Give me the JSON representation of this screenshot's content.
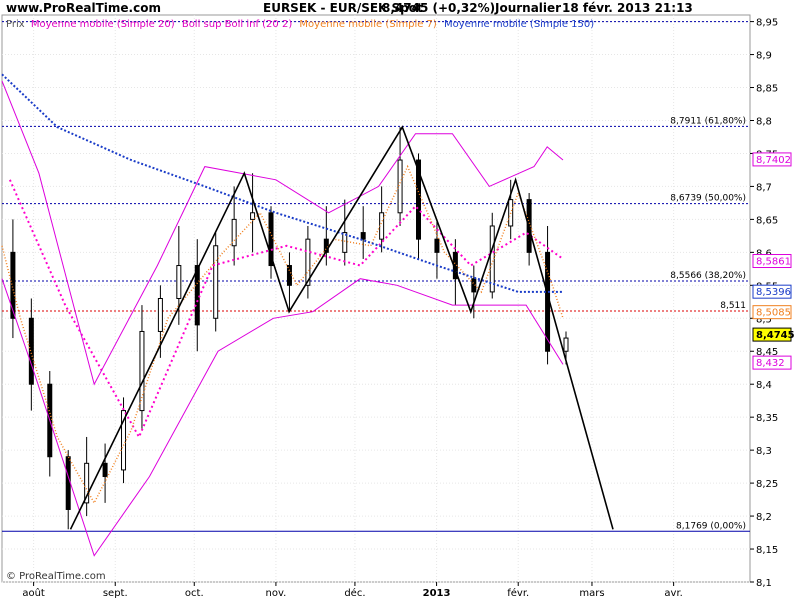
{
  "header": {
    "site": "www.ProRealTime.com",
    "instrument": "EURSEK - EUR/SEK Spot",
    "quote": "8,4745 (+0,32%)",
    "period": "Journalier",
    "datetime": "18 févr. 2013 21:13"
  },
  "copyright": "© ProRealTime.com",
  "legend": {
    "prefix": "Prix",
    "items": [
      {
        "label": "Moyenne mobile (Simple 20)",
        "color": "#e000c0"
      },
      {
        "label": "Boll sup Boll inf (20 2)",
        "color": "#e000c0"
      },
      {
        "label": "Moyenne mobile (Simple 7)",
        "color": "#f08020"
      },
      {
        "label": "Moyenne mobile (Simple 150)",
        "color": "#1a3cc8"
      }
    ]
  },
  "colors": {
    "background": "#ffffff",
    "candles": "#000000",
    "ma20": "#ff00cc",
    "bollinger": "#dd00dd",
    "ma7": "#f08020",
    "ma150": "#1a3cc8",
    "fib_line": "#0000aa",
    "red_level": "#dd0000",
    "trendline": "#000000"
  },
  "chart_data": {
    "type": "candlestick",
    "ylim": [
      8.1,
      8.96
    ],
    "y_ticks": [
      "8,1",
      "8,15",
      "8,2",
      "8,25",
      "8,3",
      "8,35",
      "8,4",
      "8,45",
      "8,5",
      "8,55",
      "8,6",
      "8,65",
      "8,7",
      "8,75",
      "8,8",
      "8,85",
      "8,9",
      "8,95"
    ],
    "x_axis_labels": [
      "août",
      "sept.",
      "oct.",
      "nov.",
      "déc.",
      "2013",
      "févr.",
      "mars",
      "avr."
    ],
    "x_axis_dates": [
      "2012-08-01",
      "2012-09-01",
      "2012-10-01",
      "2012-11-01",
      "2012-12-01",
      "2013-01-01",
      "2013-02-01",
      "2013-03-01",
      "2013-04-01"
    ],
    "date_range": [
      "2012-07-20",
      "2013-04-30"
    ],
    "last_bar_date": "2013-02-18",
    "ohlc_by_week": [
      {
        "week_of": "2012-07-23",
        "o": 8.6,
        "h": 8.65,
        "l": 8.47,
        "c": 8.5
      },
      {
        "week_of": "2012-07-30",
        "o": 8.5,
        "h": 8.53,
        "l": 8.36,
        "c": 8.4
      },
      {
        "week_of": "2012-08-06",
        "o": 8.4,
        "h": 8.42,
        "l": 8.26,
        "c": 8.29
      },
      {
        "week_of": "2012-08-13",
        "o": 8.29,
        "h": 8.3,
        "l": 8.18,
        "c": 8.21
      },
      {
        "week_of": "2012-08-20",
        "o": 8.22,
        "h": 8.32,
        "l": 8.2,
        "c": 8.28
      },
      {
        "week_of": "2012-08-27",
        "o": 8.28,
        "h": 8.31,
        "l": 8.22,
        "c": 8.26
      },
      {
        "week_of": "2012-09-03",
        "o": 8.27,
        "h": 8.38,
        "l": 8.25,
        "c": 8.36
      },
      {
        "week_of": "2012-09-10",
        "o": 8.36,
        "h": 8.52,
        "l": 8.33,
        "c": 8.48
      },
      {
        "week_of": "2012-09-17",
        "o": 8.48,
        "h": 8.55,
        "l": 8.44,
        "c": 8.53
      },
      {
        "week_of": "2012-09-24",
        "o": 8.53,
        "h": 8.64,
        "l": 8.49,
        "c": 8.58
      },
      {
        "week_of": "2012-10-01",
        "o": 8.58,
        "h": 8.62,
        "l": 8.45,
        "c": 8.49
      },
      {
        "week_of": "2012-10-08",
        "o": 8.5,
        "h": 8.63,
        "l": 8.48,
        "c": 8.61
      },
      {
        "week_of": "2012-10-15",
        "o": 8.61,
        "h": 8.7,
        "l": 8.58,
        "c": 8.65
      },
      {
        "week_of": "2012-10-22",
        "o": 8.65,
        "h": 8.72,
        "l": 8.6,
        "c": 8.66
      },
      {
        "week_of": "2012-10-29",
        "o": 8.66,
        "h": 8.67,
        "l": 8.56,
        "c": 8.58
      },
      {
        "week_of": "2012-11-05",
        "o": 8.58,
        "h": 8.6,
        "l": 8.51,
        "c": 8.55
      },
      {
        "week_of": "2012-11-12",
        "o": 8.55,
        "h": 8.64,
        "l": 8.53,
        "c": 8.62
      },
      {
        "week_of": "2012-11-19",
        "o": 8.62,
        "h": 8.67,
        "l": 8.58,
        "c": 8.6
      },
      {
        "week_of": "2012-11-26",
        "o": 8.6,
        "h": 8.68,
        "l": 8.58,
        "c": 8.63
      },
      {
        "week_of": "2012-12-03",
        "o": 8.63,
        "h": 8.67,
        "l": 8.59,
        "c": 8.62
      },
      {
        "week_of": "2012-12-10",
        "o": 8.62,
        "h": 8.7,
        "l": 8.6,
        "c": 8.66
      },
      {
        "week_of": "2012-12-17",
        "o": 8.66,
        "h": 8.79,
        "l": 8.64,
        "c": 8.74
      },
      {
        "week_of": "2012-12-24",
        "o": 8.74,
        "h": 8.75,
        "l": 8.59,
        "c": 8.62
      },
      {
        "week_of": "2012-12-31",
        "o": 8.62,
        "h": 8.65,
        "l": 8.56,
        "c": 8.6
      },
      {
        "week_of": "2013-01-07",
        "o": 8.6,
        "h": 8.62,
        "l": 8.52,
        "c": 8.56
      },
      {
        "week_of": "2013-01-14",
        "o": 8.56,
        "h": 8.58,
        "l": 8.5,
        "c": 8.54
      },
      {
        "week_of": "2013-01-21",
        "o": 8.54,
        "h": 8.66,
        "l": 8.53,
        "c": 8.64
      },
      {
        "week_of": "2013-01-28",
        "o": 8.64,
        "h": 8.71,
        "l": 8.62,
        "c": 8.68
      },
      {
        "week_of": "2013-02-04",
        "o": 8.68,
        "h": 8.69,
        "l": 8.58,
        "c": 8.6
      },
      {
        "week_of": "2013-02-11",
        "o": 8.6,
        "h": 8.64,
        "l": 8.43,
        "c": 8.45
      },
      {
        "week_of": "2013-02-18",
        "o": 8.45,
        "h": 8.48,
        "l": 8.43,
        "c": 8.47
      }
    ],
    "series": [
      {
        "key": "ma20",
        "name": "Moyenne mobile (Simple 20)",
        "points": [
          [
            "2012-07-23",
            8.71
          ],
          [
            "2012-08-13",
            8.52
          ],
          [
            "2012-09-10",
            8.32
          ],
          [
            "2012-10-08",
            8.58
          ],
          [
            "2012-11-05",
            8.61
          ],
          [
            "2012-12-03",
            8.58
          ],
          [
            "2012-12-24",
            8.67
          ],
          [
            "2013-01-14",
            8.58
          ],
          [
            "2013-02-04",
            8.63
          ],
          [
            "2013-02-18",
            8.59
          ]
        ]
      },
      {
        "key": "boll_up",
        "name": "Boll sup",
        "points": [
          [
            "2012-07-20",
            8.86
          ],
          [
            "2012-08-03",
            8.72
          ],
          [
            "2012-08-24",
            8.4
          ],
          [
            "2012-09-17",
            8.58
          ],
          [
            "2012-10-05",
            8.73
          ],
          [
            "2012-11-01",
            8.71
          ],
          [
            "2012-11-21",
            8.66
          ],
          [
            "2012-12-10",
            8.7
          ],
          [
            "2012-12-24",
            8.78
          ],
          [
            "2013-01-07",
            8.78
          ],
          [
            "2013-01-21",
            8.7
          ],
          [
            "2013-02-07",
            8.73
          ],
          [
            "2013-02-12",
            8.76
          ],
          [
            "2013-02-18",
            8.74
          ]
        ]
      },
      {
        "key": "boll_dn",
        "name": "Boll inf",
        "points": [
          [
            "2012-07-20",
            8.56
          ],
          [
            "2012-08-01",
            8.42
          ],
          [
            "2012-08-24",
            8.14
          ],
          [
            "2012-09-14",
            8.26
          ],
          [
            "2012-10-10",
            8.45
          ],
          [
            "2012-10-31",
            8.5
          ],
          [
            "2012-11-15",
            8.51
          ],
          [
            "2012-12-03",
            8.56
          ],
          [
            "2012-12-17",
            8.55
          ],
          [
            "2013-01-07",
            8.52
          ],
          [
            "2013-01-21",
            8.52
          ],
          [
            "2013-02-04",
            8.52
          ],
          [
            "2013-02-18",
            8.43
          ]
        ]
      },
      {
        "key": "ma7",
        "name": "Moyenne mobile (Simple 7)",
        "points": [
          [
            "2012-07-20",
            8.61
          ],
          [
            "2012-07-27",
            8.5
          ],
          [
            "2012-08-10",
            8.32
          ],
          [
            "2012-08-24",
            8.22
          ],
          [
            "2012-09-07",
            8.33
          ],
          [
            "2012-09-21",
            8.5
          ],
          [
            "2012-10-12",
            8.6
          ],
          [
            "2012-10-26",
            8.66
          ],
          [
            "2012-11-09",
            8.55
          ],
          [
            "2012-11-23",
            8.62
          ],
          [
            "2012-12-07",
            8.61
          ],
          [
            "2012-12-21",
            8.73
          ],
          [
            "2013-01-04",
            8.6
          ],
          [
            "2013-01-18",
            8.54
          ],
          [
            "2013-02-01",
            8.69
          ],
          [
            "2013-02-14",
            8.55
          ],
          [
            "2013-02-18",
            8.5
          ]
        ]
      },
      {
        "key": "ma150",
        "name": "Moyenne mobile (Simple 150)",
        "points": [
          [
            "2012-07-20",
            8.87
          ],
          [
            "2012-08-10",
            8.79
          ],
          [
            "2012-09-07",
            8.74
          ],
          [
            "2012-10-05",
            8.7
          ],
          [
            "2012-11-01",
            8.66
          ],
          [
            "2012-12-03",
            8.62
          ],
          [
            "2013-01-01",
            8.58
          ],
          [
            "2013-02-01",
            8.54
          ],
          [
            "2013-02-18",
            8.54
          ]
        ]
      }
    ],
    "trendline": [
      [
        "2012-08-15",
        8.18
      ],
      [
        "2012-10-20",
        8.72
      ],
      [
        "2012-11-06",
        8.51
      ],
      [
        "2012-12-19",
        8.79
      ],
      [
        "2013-01-14",
        8.51
      ],
      [
        "2013-01-31",
        8.71
      ],
      [
        "2013-03-09",
        8.18
      ]
    ],
    "fib_levels": [
      {
        "value": 8.95,
        "label": ""
      },
      {
        "value": 8.7911,
        "label": "8,7911 (61,80%)"
      },
      {
        "value": 8.6739,
        "label": "8,6739 (50,00%)"
      },
      {
        "value": 8.5566,
        "label": "8,5566 (38,20%)"
      },
      {
        "value": 8.1769,
        "label": "8,1769 (0,00%)"
      }
    ],
    "red_level": {
      "value": 8.511,
      "label": "8,511"
    },
    "value_badges": [
      {
        "value": 8.7402,
        "label": "8,7402",
        "color": "#dd00dd",
        "bg": "#ffffff"
      },
      {
        "value": 8.5861,
        "label": "8,5861",
        "color": "#dd00dd",
        "bg": "#ffffff"
      },
      {
        "value": 8.5396,
        "label": "8,5396",
        "color": "#1a3cc8",
        "bg": "#ffffff"
      },
      {
        "value": 8.5085,
        "label": "8,5085",
        "color": "#f08020",
        "bg": "#ffffff"
      },
      {
        "value": 8.4745,
        "label": "8,4745",
        "color": "#000000",
        "bg": "#ffff00"
      },
      {
        "value": 8.432,
        "label": "8,432",
        "color": "#dd00dd",
        "bg": "#ffffff"
      }
    ]
  }
}
